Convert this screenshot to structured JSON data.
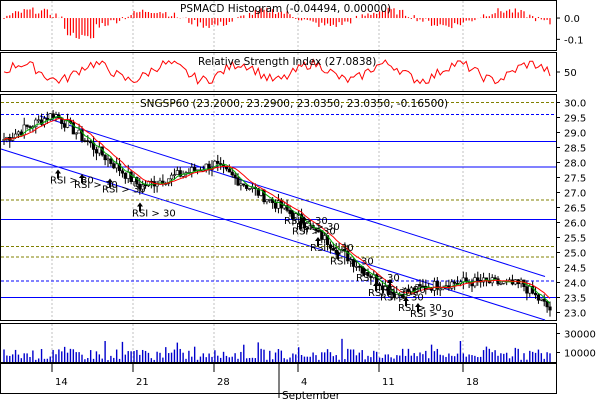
{
  "chart_data": [
    {
      "type": "line",
      "title": "PSMACD Histogram (-0.04494, 0.00000)",
      "yticks": [
        "0.0",
        "-0.1"
      ],
      "ylim": [
        -0.15,
        0.08
      ],
      "colors": {
        "bars": "#ff0000"
      }
    },
    {
      "type": "line",
      "title": "Relative Strength Index (27.0838)",
      "yticks": [
        "50"
      ],
      "ylim": [
        15,
        85
      ],
      "colors": {
        "line": "#ff0000"
      }
    },
    {
      "type": "line",
      "title": "SNGSP60 (23.2000, 23.2900, 23.0350, 23.0350, -0.16500)",
      "ylim": [
        22.75,
        30.25
      ],
      "yticks": [
        "30.0",
        "29.5",
        "29.0",
        "28.5",
        "28.0",
        "27.5",
        "27.0",
        "26.5",
        "26.0",
        "25.5",
        "25.0",
        "24.5",
        "24.0",
        "23.5",
        "23.0"
      ],
      "trend_channel": {
        "upper": [
          [
            29.55,
            24.2
          ]
        ],
        "lower": [
          [
            28.45,
            22.75
          ]
        ]
      },
      "horizontal_levels": [
        {
          "y": 30.0,
          "style": "dashed",
          "color": "#808000"
        },
        {
          "y": 29.6,
          "style": "dashed",
          "color": "#0000ff"
        },
        {
          "y": 28.7,
          "style": "solid",
          "color": "#0000ff"
        },
        {
          "y": 27.85,
          "style": "solid",
          "color": "#0000ff"
        },
        {
          "y": 26.75,
          "style": "dashed",
          "color": "#808000"
        },
        {
          "y": 26.1,
          "style": "solid",
          "color": "#0000ff"
        },
        {
          "y": 25.2,
          "style": "dashed",
          "color": "#808000"
        },
        {
          "y": 24.85,
          "style": "dashed",
          "color": "#808000"
        },
        {
          "y": 24.05,
          "style": "dashed",
          "color": "#0000ff"
        },
        {
          "y": 23.5,
          "style": "solid",
          "color": "#0000ff"
        }
      ],
      "annotations": [
        {
          "label": "RSI > 30",
          "x": 50,
          "y": 27.3
        },
        {
          "label": "RSI > 30",
          "x": 74,
          "y": 27.15
        },
        {
          "label": "RSI > 30",
          "x": 102,
          "y": 27.0
        },
        {
          "label": "RSI > 30",
          "x": 132,
          "y": 26.2
        },
        {
          "label": "RSI > 30",
          "x": 284,
          "y": 25.95
        },
        {
          "label": "RSI > 30",
          "x": 296,
          "y": 25.75
        },
        {
          "label": "RSI > 30",
          "x": 292,
          "y": 25.6
        },
        {
          "label": "RSI > 30",
          "x": 310,
          "y": 25.05
        },
        {
          "label": "RSI > 30",
          "x": 330,
          "y": 24.6
        },
        {
          "label": "RSI > 30",
          "x": 356,
          "y": 24.05
        },
        {
          "label": "RSI > 30",
          "x": 382,
          "y": 23.65
        },
        {
          "label": "RSI > 30",
          "x": 368,
          "y": 23.55
        },
        {
          "label": "RSI > 30",
          "x": 380,
          "y": 23.4
        },
        {
          "label": "RSI > 30",
          "x": 398,
          "y": 23.05
        },
        {
          "label": "RSI > 30",
          "x": 410,
          "y": 22.85
        }
      ],
      "colors": {
        "candles": "#000000",
        "ma_fast": "#00aa00",
        "ma_slow": "#ff0000",
        "channel": "#0000ff"
      }
    },
    {
      "type": "bar",
      "title": "",
      "yticks": [
        "30000",
        "10000"
      ],
      "ylim": [
        0,
        40000
      ],
      "colors": {
        "bars": "#0000cc"
      }
    }
  ],
  "x_axis": {
    "ticks": [
      "14",
      "21",
      "28",
      "4",
      "11",
      "18"
    ],
    "month_label": "September"
  }
}
